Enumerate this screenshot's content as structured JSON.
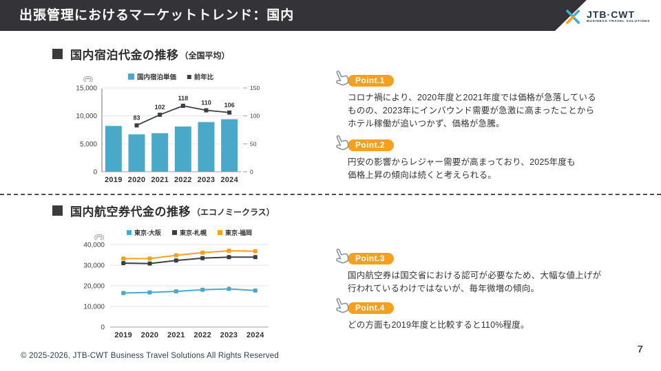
{
  "header": {
    "title": "出張管理におけるマーケットトレンド：国内",
    "logo": {
      "name": "JTB·CWT",
      "tagline": "BUSINESS TRAVEL SOLUTIONS"
    }
  },
  "sections": [
    {
      "heading": "国内宿泊代金の推移",
      "heading_note": "（全国平均）"
    },
    {
      "heading": "国内航空券代金の推移",
      "heading_note": "（エコノミークラス）"
    }
  ],
  "points": [
    {
      "label": "Point.1",
      "text": "コロナ禍により、2020年度と2021年度では価格が急落している\nものの、2023年にインバウンド需要が急激に高まったことから\nホテル稼働が追いつかず、価格が急騰。"
    },
    {
      "label": "Point.2",
      "text": "円安の影響からレジャー需要が高まっており、2025年度も\n価格上昇の傾向は続くと考えられる。"
    },
    {
      "label": "Point.3",
      "text": "国内航空券は国交省における認可が必要なため、大幅な値上げが\n行われているわけではないが、毎年微増の傾向。"
    },
    {
      "label": "Point.4",
      "text": "どの方面も2019年度と比較すると110%程度。"
    }
  ],
  "footer": {
    "copyright": "© 2025-2026, JTB-CWT Business Travel Solutions All Rights Reserved",
    "page_number": "7"
  },
  "colors": {
    "header_bar": "#333338",
    "teal": "#4aa9c8",
    "orange": "#f5a01e",
    "dark_series": "#3a3f46",
    "badge_orange": "#f5a01e"
  },
  "icons": {
    "point_marker": "hand-pointer-icon",
    "logo_mark": "jtb-cwt-chevron-icon",
    "heading_bullet": "black-square"
  },
  "chart_data": [
    {
      "type": "bar",
      "title": "国内宿泊代金の推移（全国平均）",
      "unit_label": "(円)",
      "categories": [
        "2019",
        "2020",
        "2021",
        "2022",
        "2023",
        "2024"
      ],
      "series": [
        {
          "name": "国内宿泊単価",
          "kind": "bar",
          "axis": "left",
          "color": "#4aa9c8",
          "values": [
            8200,
            6700,
            6900,
            8100,
            8900,
            9400
          ]
        },
        {
          "name": "前年比",
          "kind": "line",
          "axis": "right",
          "color": "#3a3f46",
          "values": [
            null,
            83,
            102,
            118,
            110,
            106
          ],
          "point_labels": [
            "",
            "83",
            "102",
            "118",
            "110",
            "106"
          ]
        }
      ],
      "left_axis": {
        "ticks": [
          "0",
          "5,000",
          "10,000",
          "15,000"
        ],
        "max": 15000
      },
      "right_axis": {
        "ticks": [
          "0",
          "50",
          "100",
          "150"
        ],
        "max": 150
      },
      "grid": true,
      "legend_position": "top"
    },
    {
      "type": "line",
      "title": "国内航空券代金の推移（エコノミークラス）",
      "unit_label": "(円)",
      "categories": [
        "2019",
        "2020",
        "2021",
        "2022",
        "2023",
        "2024"
      ],
      "series": [
        {
          "name": "東京-大阪",
          "color": "#4aa9c8",
          "values": [
            16500,
            16800,
            17300,
            18100,
            18500,
            17700
          ]
        },
        {
          "name": "東京-札幌",
          "color": "#3a3f46",
          "values": [
            31000,
            30800,
            32300,
            33400,
            33900,
            33900
          ]
        },
        {
          "name": "東京-福岡",
          "color": "#f5a01e",
          "values": [
            33200,
            33200,
            34800,
            36100,
            37000,
            36800
          ]
        }
      ],
      "y_axis": {
        "ticks": [
          "0",
          "10,000",
          "20,000",
          "30,000",
          "40,000"
        ],
        "max": 40000
      },
      "grid": true,
      "legend_position": "top"
    }
  ]
}
